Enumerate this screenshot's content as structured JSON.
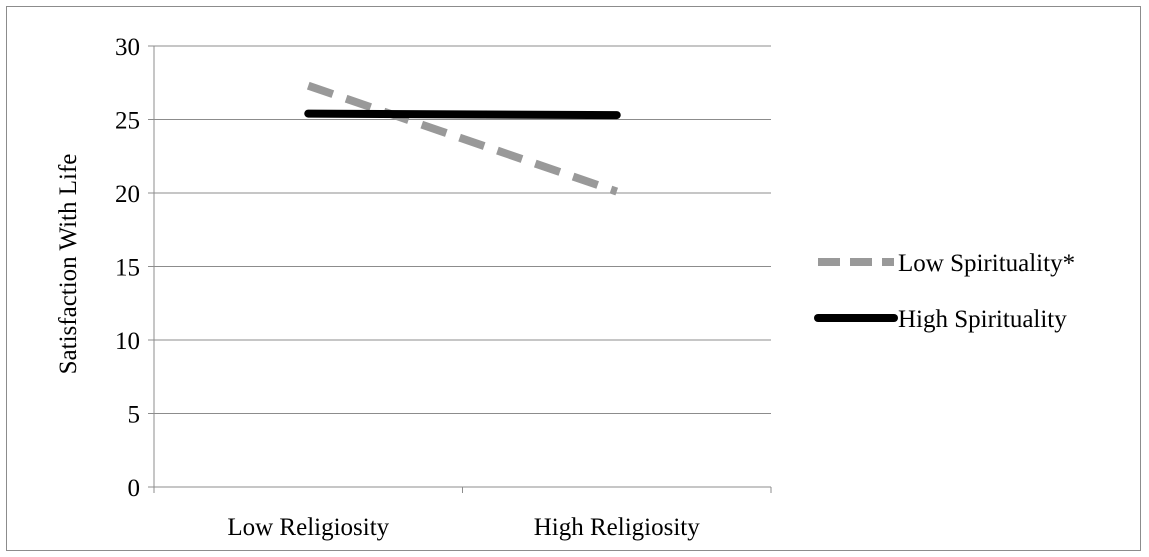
{
  "chart_data": {
    "type": "line",
    "title": "",
    "xlabel": "",
    "ylabel": "Satisfaction With Life",
    "categories": [
      "Low Religiosity",
      "High Religiosity"
    ],
    "ylim": [
      0,
      30
    ],
    "yticks": [
      0,
      5,
      10,
      15,
      20,
      25,
      30
    ],
    "grid": true,
    "legend_position": "right",
    "series": [
      {
        "name": "Low Spirituality*",
        "values": [
          27.3,
          20.1
        ],
        "color": "#999999",
        "dash": "dashed"
      },
      {
        "name": "High Spirituality",
        "values": [
          25.4,
          25.3
        ],
        "color": "#000000",
        "dash": "solid"
      }
    ]
  }
}
